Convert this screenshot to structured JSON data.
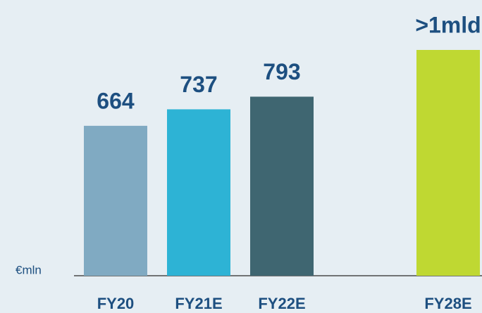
{
  "chart_data": {
    "type": "bar",
    "categories": [
      "FY20",
      "FY21E",
      "FY22E",
      null,
      "FY28E"
    ],
    "values": [
      664,
      737,
      793,
      null,
      1000
    ],
    "value_labels": [
      "664",
      "737",
      "793",
      null,
      ">1mld"
    ],
    "colors": [
      "#80aac2",
      "#2db3d5",
      "#3f6671",
      null,
      "#bfd832"
    ],
    "y_axis_label": "€mln",
    "ylim": [
      0,
      1000
    ]
  }
}
